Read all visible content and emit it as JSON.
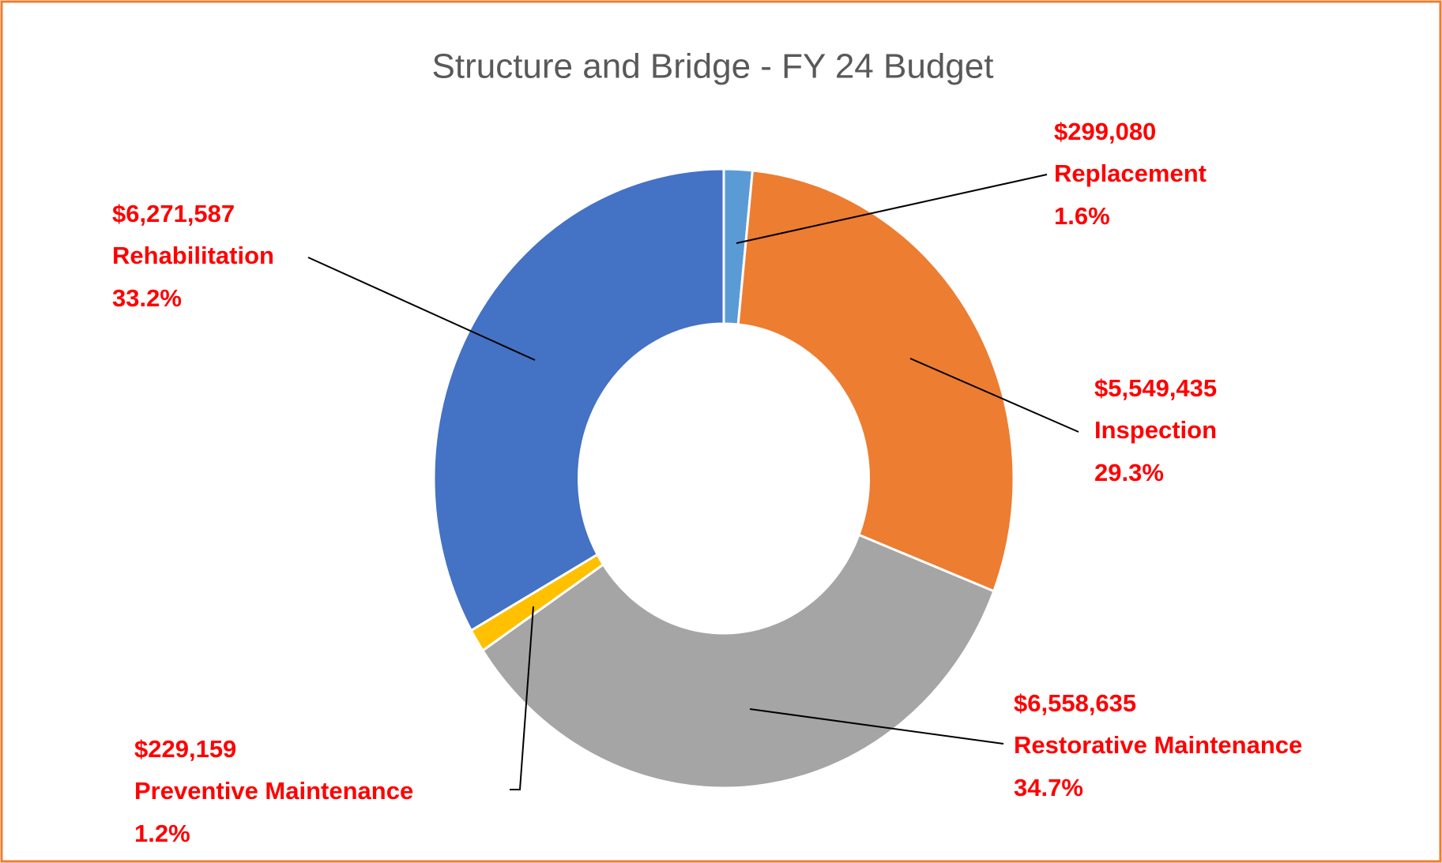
{
  "chart_data": {
    "type": "donut",
    "title": "Structure and Bridge - FY 24 Budget",
    "categories": [
      "Replacement",
      "Inspection",
      "Restorative Maintenance",
      "Preventive Maintenance",
      "Rehabilitation"
    ],
    "values": [
      299080,
      5549435,
      6558635,
      229159,
      6271587
    ],
    "value_labels": [
      "$299,080",
      "$5,549,435",
      "$6,558,635",
      "$229,159",
      "$6,271,587"
    ],
    "percent_labels": [
      "1.6%",
      "29.3%",
      "34.7%",
      "1.2%",
      "33.2%"
    ],
    "colors": [
      "#5b9bd5",
      "#ed7d31",
      "#a5a5a5",
      "#ffc000",
      "#4472c4"
    ]
  }
}
